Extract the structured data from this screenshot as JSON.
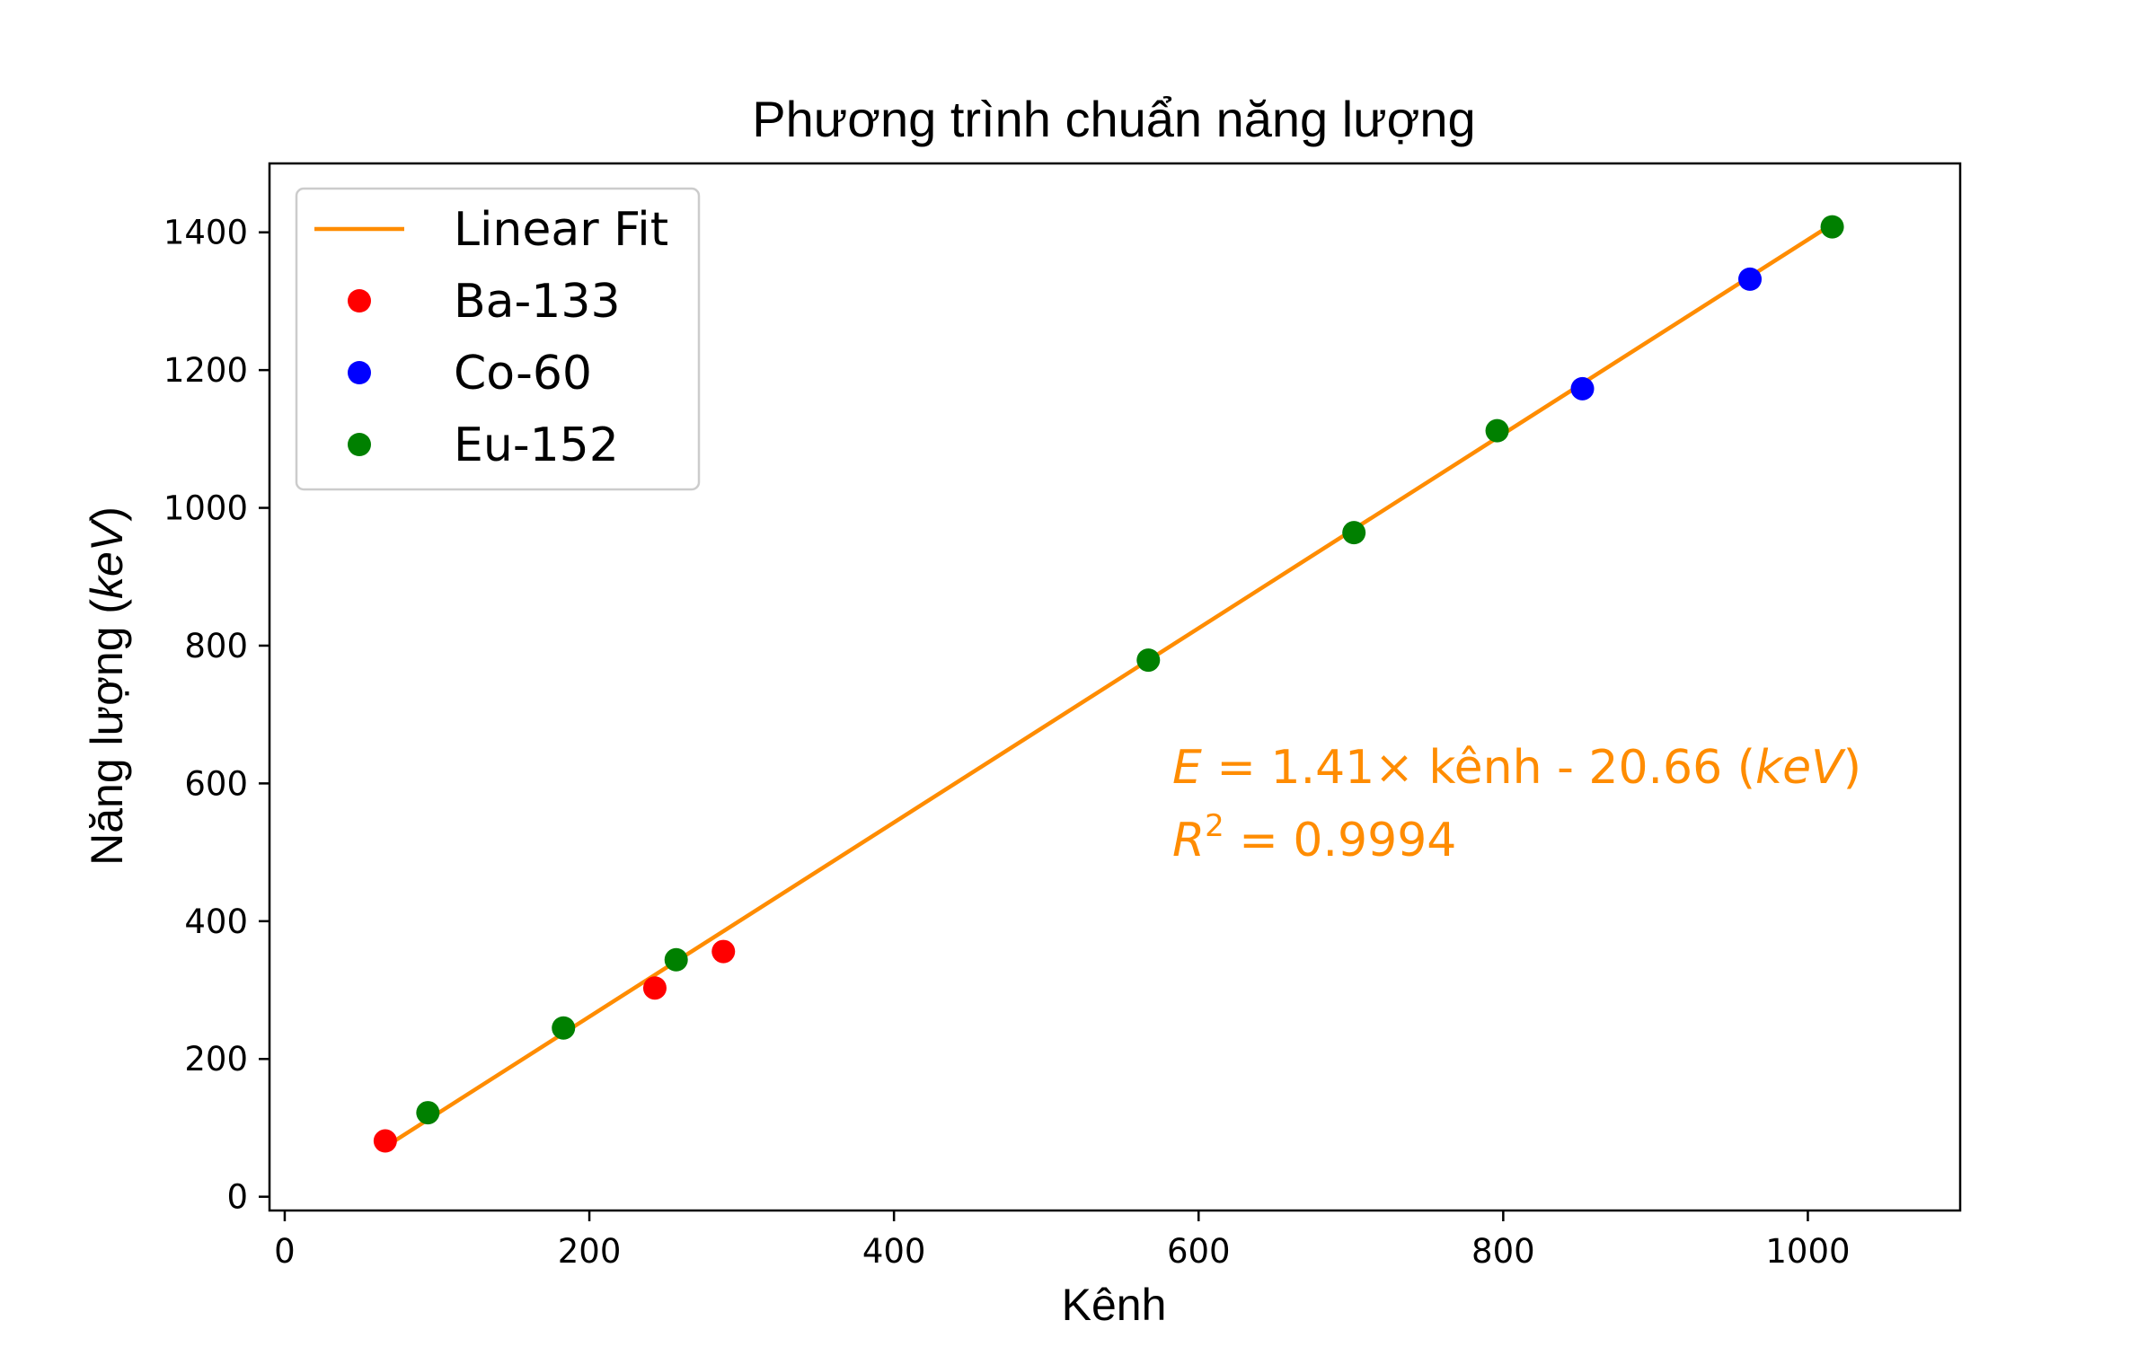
{
  "chart_data": {
    "type": "scatter",
    "title": "Phương trình chuẩn năng lượng",
    "xlabel": "Kênh",
    "ylabel": "Năng lượng (keV)",
    "ylabel_parts": {
      "prefix": "Năng lượng (",
      "unit": "keV",
      "suffix": ")"
    },
    "xlim": [
      -10,
      1100
    ],
    "ylim": [
      -20,
      1500
    ],
    "xticks": [
      0,
      200,
      400,
      600,
      800,
      1000
    ],
    "yticks": [
      0,
      200,
      400,
      600,
      800,
      1000,
      1200,
      1400
    ],
    "grid": false,
    "legend_position": "top-left",
    "fit": {
      "name": "Linear Fit",
      "color": "#ff8c00",
      "slope": 1.41,
      "intercept": -20.66,
      "x_range": [
        72,
        1017
      ]
    },
    "series": [
      {
        "name": "Ba-133",
        "color": "#ff0000",
        "points": [
          [
            66,
            81
          ],
          [
            243,
            303
          ],
          [
            288,
            356
          ]
        ]
      },
      {
        "name": "Co-60",
        "color": "#0000ff",
        "points": [
          [
            852,
            1173
          ],
          [
            962,
            1332
          ]
        ]
      },
      {
        "name": "Eu-152",
        "color": "#008000",
        "points": [
          [
            94,
            122
          ],
          [
            183,
            245
          ],
          [
            257,
            344
          ],
          [
            567,
            779
          ],
          [
            702,
            964
          ],
          [
            796,
            1112
          ],
          [
            1016,
            1408
          ]
        ]
      }
    ],
    "annotation": {
      "eq_var": "E",
      "eq_body": " = 1.41× kênh - 20.66 (",
      "eq_unit": "keV",
      "eq_close": ")",
      "r2_var": "R",
      "r2_exp": "2",
      "r2_value": " = 0.9994",
      "color": "#ff8c00"
    }
  }
}
